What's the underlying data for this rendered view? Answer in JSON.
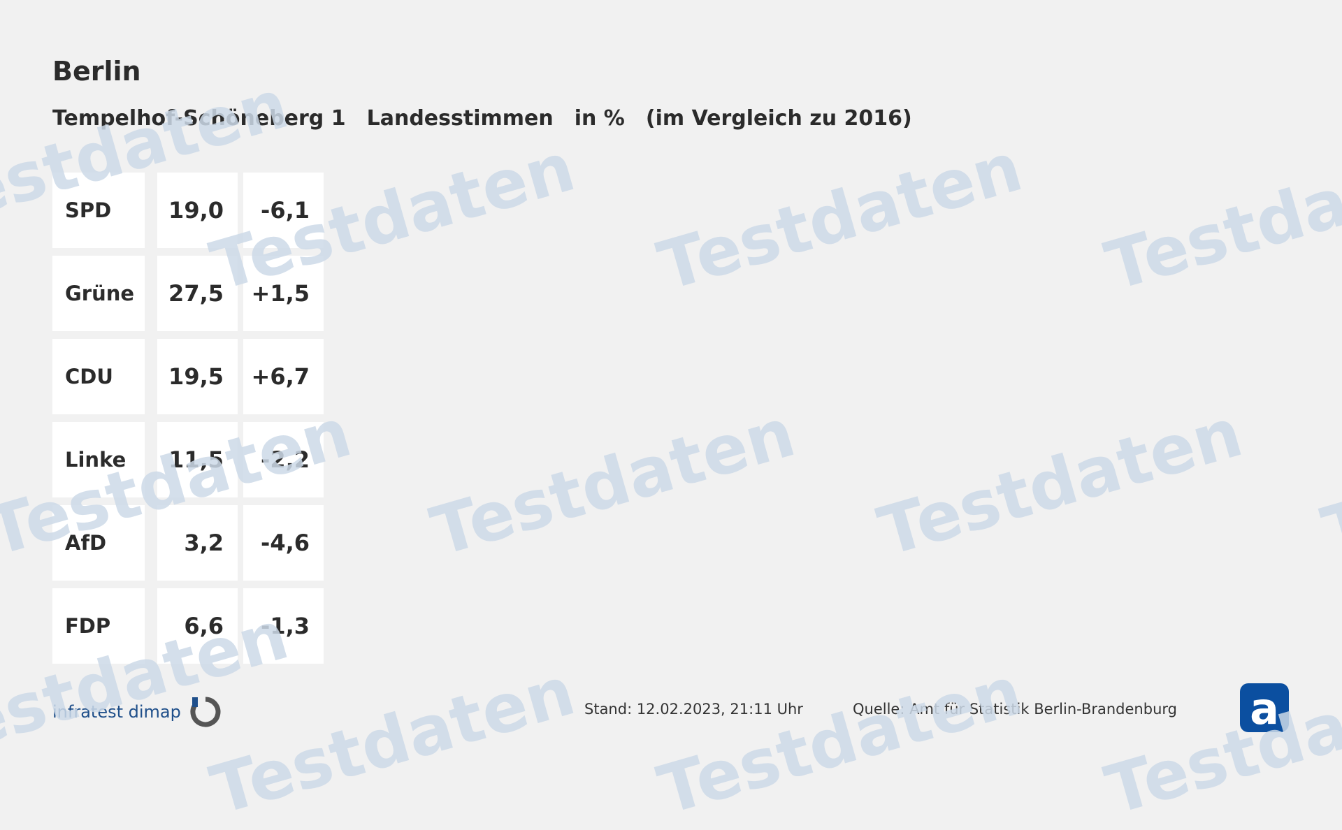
{
  "title": "Berlin",
  "subtitle": {
    "district": "Tempelhof-Schöneberg 1",
    "vote": "Landesstimmen",
    "unit": "in %",
    "comparison": "(im Vergleich zu 2016)"
  },
  "rows": [
    {
      "party": "SPD",
      "value": "19,0",
      "diff": "-6,1"
    },
    {
      "party": "Grüne",
      "value": "27,5",
      "diff": "+1,5"
    },
    {
      "party": "CDU",
      "value": "19,5",
      "diff": "+6,7"
    },
    {
      "party": "Linke",
      "value": "11,5",
      "diff": "-2,2"
    },
    {
      "party": "AfD",
      "value": "3,2",
      "diff": "-4,6"
    },
    {
      "party": "FDP",
      "value": "6,6",
      "diff": "-1,3"
    }
  ],
  "watermark": "Testdaten",
  "logo": "infratest dimap",
  "footer": {
    "stand": "Stand:  12.02.2023, 21:11 Uhr",
    "quelle": "Quelle: Amt für Statistik Berlin-Brandenburg"
  },
  "colors": {
    "background": "#f1f1f1",
    "watermark": "#cdd9e8",
    "logo": "#1f4f8a"
  }
}
